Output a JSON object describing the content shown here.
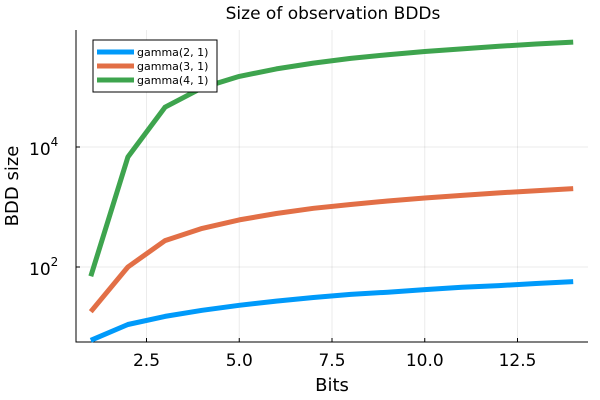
{
  "chart_data": {
    "type": "line",
    "title": "Size of observation BDDs",
    "xlabel": "Bits",
    "ylabel": "BDD size",
    "xscale": "linear",
    "yscale": "log10",
    "xlim": [
      0.6,
      14.4
    ],
    "ylim_log10": [
      0.75,
      5.95
    ],
    "x_ticks": [
      "2.5",
      "5.0",
      "7.5",
      "10.0",
      "12.5"
    ],
    "x_tick_values": [
      2.5,
      5.0,
      7.5,
      10.0,
      12.5
    ],
    "y_ticks": [
      {
        "value": 100,
        "base": "10",
        "exp": "2"
      },
      {
        "value": 10000,
        "base": "10",
        "exp": "4"
      }
    ],
    "grid": true,
    "legend_position": "top-left",
    "x": [
      1,
      2,
      3,
      4,
      5,
      6,
      7,
      8,
      9,
      10,
      11,
      12,
      13,
      14
    ],
    "series": [
      {
        "name": "gamma(2, 1)",
        "color": "#009AFA",
        "values": [
          6,
          11,
          15,
          19,
          23,
          27,
          31,
          35,
          38,
          42,
          46,
          49,
          53,
          57
        ]
      },
      {
        "name": "gamma(3, 1)",
        "color": "#E26F46",
        "values": [
          18,
          100,
          275,
          440,
          610,
          780,
          950,
          1100,
          1260,
          1410,
          1560,
          1720,
          1870,
          2030
        ]
      },
      {
        "name": "gamma(4, 1)",
        "color": "#3EA44E",
        "values": [
          70,
          6800,
          46000,
          97000,
          150000,
          200000,
          250000,
          300000,
          345000,
          390000,
          432000,
          476000,
          520000,
          560000
        ]
      }
    ]
  }
}
